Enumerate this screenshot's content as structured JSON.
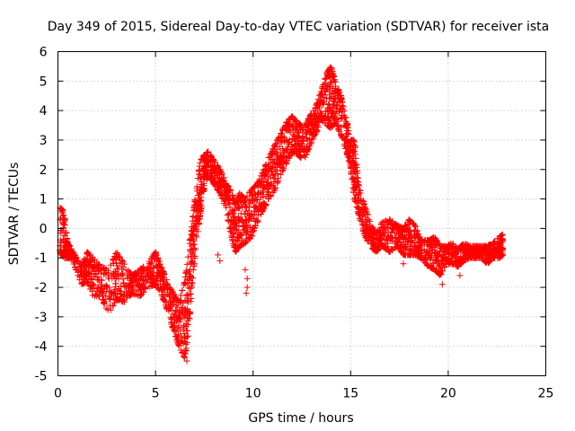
{
  "chart_data": {
    "type": "scatter",
    "title": "Day 349 of 2015, Sidereal Day-to-day VTEC variation (SDTVAR) for receiver ista",
    "xlabel": "GPS time / hours",
    "ylabel": "SDTVAR / TECUs",
    "xlim": [
      0,
      25
    ],
    "ylim": [
      -5,
      6
    ],
    "xticks": [
      0,
      5,
      10,
      15,
      20,
      25
    ],
    "yticks": [
      -5,
      -4,
      -3,
      -2,
      -1,
      0,
      1,
      2,
      3,
      4,
      5,
      6
    ],
    "grid": true,
    "marker": "+",
    "color": "#ff0000",
    "series": [
      {
        "name": "SDTVAR",
        "envelope": [
          [
            0.1,
            -0.8,
            0.7
          ],
          [
            0.3,
            -1.0,
            0.6
          ],
          [
            0.5,
            -1.0,
            -0.5
          ],
          [
            0.7,
            -1.0,
            -0.7
          ],
          [
            1.2,
            -1.9,
            -1.3
          ],
          [
            1.5,
            -1.8,
            -0.8
          ],
          [
            1.8,
            -2.3,
            -1.0
          ],
          [
            2.2,
            -2.3,
            -1.3
          ],
          [
            2.6,
            -2.9,
            -1.4
          ],
          [
            3.0,
            -2.4,
            -0.8
          ],
          [
            3.4,
            -2.5,
            -1.2
          ],
          [
            3.8,
            -2.2,
            -1.6
          ],
          [
            4.2,
            -2.3,
            -1.4
          ],
          [
            4.6,
            -2.0,
            -1.2
          ],
          [
            5.0,
            -1.9,
            -0.8
          ],
          [
            5.3,
            -2.2,
            -1.3
          ],
          [
            5.6,
            -2.8,
            -1.8
          ],
          [
            5.9,
            -3.4,
            -2.2
          ],
          [
            6.2,
            -4.0,
            -2.5
          ],
          [
            6.5,
            -4.4,
            -1.8
          ],
          [
            6.7,
            -3.5,
            -0.8
          ],
          [
            6.9,
            -1.8,
            0.3
          ],
          [
            7.1,
            -0.4,
            1.4
          ],
          [
            7.3,
            0.5,
            2.3
          ],
          [
            7.5,
            1.4,
            2.5
          ],
          [
            7.7,
            1.8,
            2.6
          ],
          [
            8.0,
            1.5,
            2.3
          ],
          [
            8.3,
            1.2,
            2.0
          ],
          [
            8.6,
            0.7,
            1.6
          ],
          [
            8.9,
            -0.3,
            1.2
          ],
          [
            9.1,
            -0.8,
            0.8
          ],
          [
            9.3,
            -0.6,
            1.2
          ],
          [
            9.6,
            -0.5,
            1.0
          ],
          [
            9.9,
            -0.3,
            1.3
          ],
          [
            10.2,
            0.2,
            1.5
          ],
          [
            10.5,
            0.6,
            1.9
          ],
          [
            10.8,
            1.0,
            2.4
          ],
          [
            11.1,
            1.3,
            2.8
          ],
          [
            11.4,
            1.8,
            3.2
          ],
          [
            11.7,
            2.2,
            3.6
          ],
          [
            12.0,
            2.6,
            3.8
          ],
          [
            12.3,
            2.5,
            3.6
          ],
          [
            12.6,
            2.3,
            3.4
          ],
          [
            12.9,
            2.8,
            3.8
          ],
          [
            13.2,
            3.2,
            4.1
          ],
          [
            13.5,
            3.7,
            4.7
          ],
          [
            13.8,
            3.5,
            5.3
          ],
          [
            14.0,
            3.4,
            5.5
          ],
          [
            14.2,
            3.6,
            5.0
          ],
          [
            14.5,
            3.2,
            4.5
          ],
          [
            14.8,
            2.6,
            3.6
          ],
          [
            15.0,
            2.0,
            3.0
          ],
          [
            15.2,
            1.0,
            3.0
          ],
          [
            15.4,
            0.5,
            1.5
          ],
          [
            15.7,
            -0.2,
            0.8
          ],
          [
            16.0,
            -0.6,
            0.2
          ],
          [
            16.3,
            -0.8,
            -0.2
          ],
          [
            16.6,
            -0.6,
            0.2
          ],
          [
            17.0,
            -0.8,
            0.3
          ],
          [
            17.4,
            -0.6,
            0.1
          ],
          [
            17.7,
            -0.9,
            0.0
          ],
          [
            18.0,
            -0.9,
            0.3
          ],
          [
            18.3,
            -0.9,
            0.1
          ],
          [
            18.6,
            -1.0,
            -0.4
          ],
          [
            19.0,
            -1.3,
            -0.4
          ],
          [
            19.3,
            -1.4,
            -0.3
          ],
          [
            19.6,
            -1.6,
            -0.6
          ],
          [
            19.9,
            -1.2,
            -0.6
          ],
          [
            20.2,
            -1.2,
            -0.5
          ],
          [
            20.5,
            -1.3,
            -0.7
          ],
          [
            20.8,
            -1.1,
            -0.5
          ],
          [
            21.1,
            -1.0,
            -0.6
          ],
          [
            21.4,
            -1.0,
            -0.6
          ],
          [
            21.7,
            -1.0,
            -0.6
          ],
          [
            22.0,
            -1.2,
            -0.6
          ],
          [
            22.3,
            -1.0,
            -0.5
          ],
          [
            22.6,
            -1.0,
            -0.3
          ],
          [
            22.8,
            -0.9,
            -0.2
          ]
        ],
        "outliers": [
          [
            9.6,
            -1.4
          ],
          [
            9.7,
            -1.7
          ],
          [
            9.65,
            -2.2
          ],
          [
            9.7,
            -2.0
          ],
          [
            8.2,
            -0.9
          ],
          [
            8.3,
            -1.1
          ],
          [
            4.9,
            -1.7
          ],
          [
            6.6,
            -4.5
          ],
          [
            17.7,
            -1.2
          ],
          [
            20.6,
            -1.6
          ],
          [
            19.7,
            -1.9
          ]
        ]
      }
    ]
  }
}
